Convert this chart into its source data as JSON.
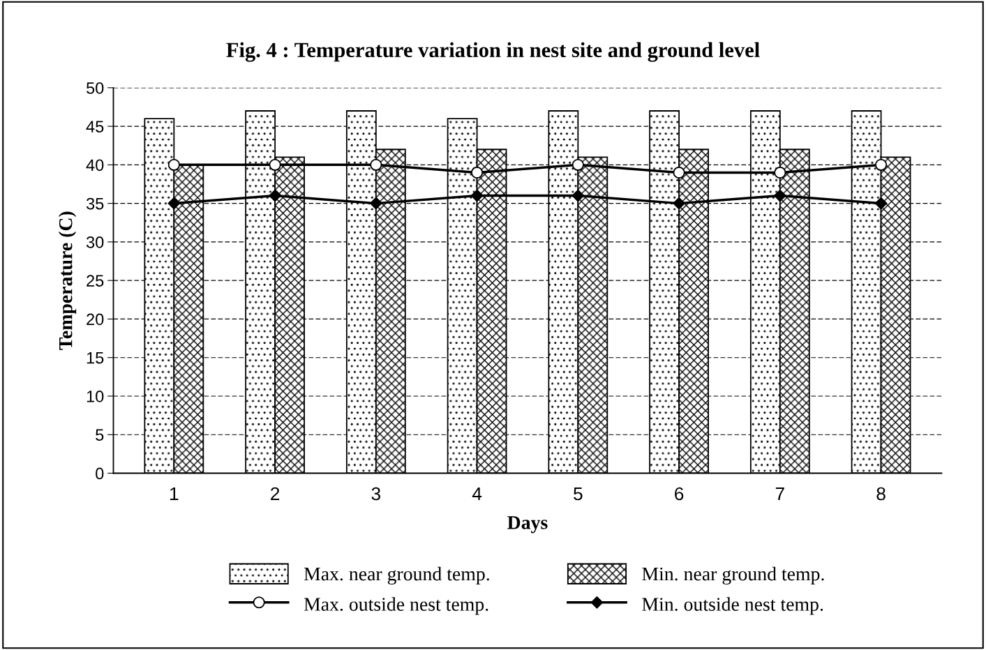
{
  "chart_data": {
    "type": "bar",
    "title": "Fig. 4 : Temperature variation in nest site and ground level",
    "xlabel": "Days",
    "ylabel": "Temperature (C)",
    "categories": [
      "1",
      "2",
      "3",
      "4",
      "5",
      "6",
      "7",
      "8"
    ],
    "series": [
      {
        "name": "Max. near ground temp.",
        "color": "#000000",
        "values": [
          46,
          47,
          47,
          46,
          47,
          47,
          47,
          47
        ]
      },
      {
        "name": "Min. near ground temp.",
        "color": "#000000",
        "values": [
          40,
          41,
          42,
          42,
          41,
          42,
          42,
          41
        ]
      },
      {
        "name": "Max. outside nest temp.",
        "type": "line",
        "color": "#000000",
        "marker": "circle",
        "values": [
          40,
          40,
          40,
          39,
          40,
          39,
          39,
          40
        ]
      },
      {
        "name": "Min. outside nest temp.",
        "type": "line",
        "color": "#000000",
        "marker": "diamond",
        "values": [
          35,
          36,
          35,
          36,
          36,
          35,
          36,
          35
        ]
      }
    ],
    "ylim": [
      0,
      50
    ],
    "yticks": [
      0,
      5,
      10,
      15,
      20,
      25,
      30,
      35,
      40,
      45,
      50
    ],
    "grid": "y",
    "legend": "bottom"
  }
}
